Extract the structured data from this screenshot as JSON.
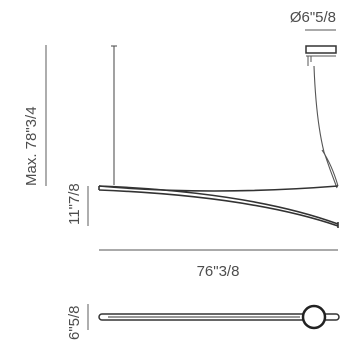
{
  "dimensions": {
    "canopy_diameter": "Ø6\"5/8",
    "max_drop": "Max. 78\"3/4",
    "arc_depth": "11\"7/8",
    "width": "76\"3/8",
    "top_view_depth": "6\"5/8"
  },
  "colors": {
    "text": "#4d4d4d",
    "lines": "#555555",
    "fixture": "#333333"
  }
}
